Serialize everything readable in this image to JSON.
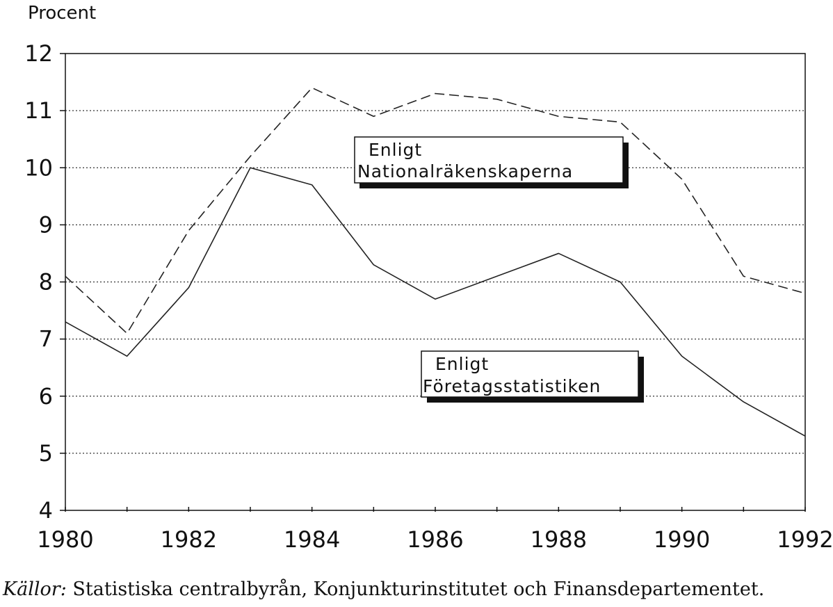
{
  "chart_data": {
    "type": "line",
    "ylabel": "Procent",
    "xlabel": "",
    "x": [
      1980,
      1981,
      1982,
      1983,
      1984,
      1985,
      1986,
      1987,
      1988,
      1989,
      1990,
      1991,
      1992
    ],
    "xlim": [
      1980,
      1992
    ],
    "ylim": [
      4,
      12
    ],
    "xticks": [
      "1980",
      "1982",
      "1984",
      "1986",
      "1988",
      "1990",
      "1992"
    ],
    "yticks": [
      "4",
      "5",
      "6",
      "7",
      "8",
      "9",
      "10",
      "11",
      "12"
    ],
    "grid": "horizontal dotted",
    "series": [
      {
        "key": "nationalrakenskaperna",
        "style": "dashed",
        "color": "#222222",
        "values": [
          8.1,
          7.1,
          8.9,
          10.2,
          11.4,
          10.9,
          11.3,
          11.2,
          10.9,
          10.8,
          9.8,
          8.1,
          7.8
        ]
      },
      {
        "key": "foretagsstatistiken",
        "style": "solid",
        "color": "#222222",
        "values": [
          7.3,
          6.7,
          7.9,
          10.0,
          9.7,
          8.3,
          7.7,
          8.1,
          8.5,
          8.0,
          6.7,
          5.9,
          5.3
        ]
      }
    ],
    "annotations": [
      {
        "series": "nationalrakenskaperna",
        "lines": [
          "Enligt",
          "Nationalräkenskaperna"
        ]
      },
      {
        "series": "foretagsstatistiken",
        "lines": [
          "Enligt",
          "Företagsstatistiken"
        ]
      }
    ]
  },
  "source": {
    "label": "Källor:",
    "text": " Statistiska centralbyrån, Konjunkturinstitutet och Finansdepartementet."
  }
}
